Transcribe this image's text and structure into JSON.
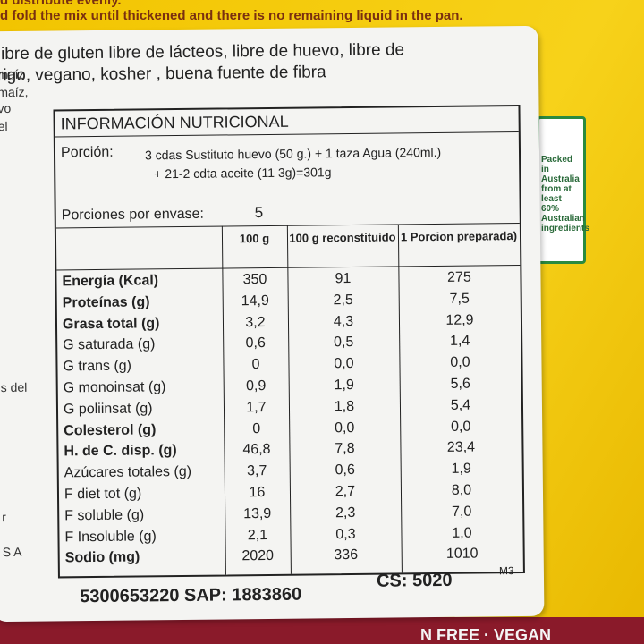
{
  "top_text": [
    "d distribute evenly.",
    "d fold the mix until thickened and there is no remaining liquid in the pan."
  ],
  "label": {
    "intro": [
      "libre de gluten libre de lácteos, libre de huevo, libre de",
      "rigo, vegano, kosher , buena fuente de fibra"
    ],
    "left_fragments": [
      "maíz",
      "maíz,",
      "vo",
      "el",
      "s del",
      "r",
      "S A"
    ],
    "title": "INFORMACIÓN NUTRICIONAL",
    "portion_label": "Porción:",
    "portion_text": [
      "3 cdas  Sustituto huevo (50 g.) + 1 taza Agua (240ml.)",
      "+ 21-2 cdta  aceite (11 3g)=301g"
    ],
    "servings_label": "Porciones por envase:",
    "servings_value": "5",
    "columns": [
      "100 g",
      "100 g reconstituido",
      "1 Porcion preparada)"
    ],
    "rows": [
      [
        "Energía (Kcal)",
        "350",
        "91",
        "275"
      ],
      [
        "Proteínas (g)",
        "14,9",
        "2,5",
        "7,5"
      ],
      [
        "Grasa total (g)",
        "3,2",
        "4,3",
        "12,9"
      ],
      [
        "G  saturada (g)",
        "0,6",
        "0,5",
        "1,4"
      ],
      [
        "G  trans (g)",
        "0",
        "0,0",
        "0,0"
      ],
      [
        "G  monoinsat  (g)",
        "0,9",
        "1,9",
        "5,6"
      ],
      [
        "G  poliinsat  (g)",
        "1,7",
        "1,8",
        "5,4"
      ],
      [
        "Colesterol (g)",
        "0",
        "0,0",
        "0,0"
      ],
      [
        "H. de C. disp. (g)",
        "46,8",
        "7,8",
        "23,4"
      ],
      [
        "Azúcares totales (g)",
        "3,7",
        "0,6",
        "1,9"
      ],
      [
        "F  diet tot (g)",
        "16",
        "2,7",
        "8,0"
      ],
      [
        "F  soluble (g)",
        "13,9",
        "2,3",
        "7,0"
      ],
      [
        "F Insoluble (g)",
        "2,1",
        "0,3",
        "1,0"
      ],
      [
        "Sodio (mg)",
        "2020",
        "336",
        "1010"
      ]
    ],
    "codes": "5300653220 SAP: 1883860",
    "cs": "CS: 5020",
    "mark": "M3"
  },
  "badge": "Packed in Australia from at least 60% Australian ingredients",
  "bottom_text": "N FREE · VEGAN"
}
